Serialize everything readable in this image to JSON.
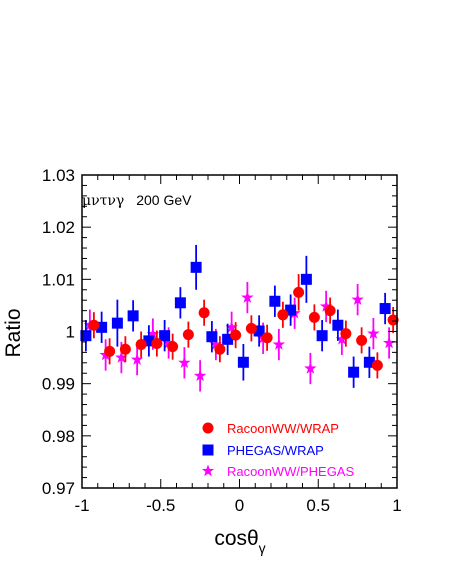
{
  "chart_data": {
    "type": "scatter",
    "title": "",
    "annotation": {
      "channel": "μντνγ",
      "energy": "200 GeV"
    },
    "xlabel": {
      "main": "cosθ",
      "sub": "γ"
    },
    "ylabel": "Ratio",
    "xlim": [
      -1,
      1
    ],
    "ylim": [
      0.97,
      1.03
    ],
    "xticks": [
      "-1",
      "-0.5",
      "0",
      "0.5",
      "1"
    ],
    "yticks": [
      "0.97",
      "0.98",
      "0.99",
      "1",
      "1.01",
      "1.02",
      "1.03"
    ],
    "grid": false,
    "legend_position": "bottom-right",
    "series": [
      {
        "name": "RacoonWW/WRAP",
        "marker": "circle",
        "color": "#ff0000",
        "x": [
          -0.95,
          -0.85,
          -0.75,
          -0.65,
          -0.55,
          -0.45,
          -0.35,
          -0.25,
          -0.15,
          -0.05,
          0.05,
          0.15,
          0.25,
          0.35,
          0.45,
          0.55,
          0.65,
          0.75,
          0.85,
          0.95
        ],
        "y": [
          1.0012,
          0.9962,
          0.9966,
          0.9975,
          0.9977,
          0.9971,
          0.9994,
          1.0036,
          0.9966,
          0.9993,
          1.0006,
          0.9988,
          1.0032,
          1.0075,
          1.0027,
          1.004,
          0.9996,
          0.9983,
          0.9935,
          1.0022
        ],
        "err": [
          0.0025,
          0.0025,
          0.0025,
          0.0025,
          0.0025,
          0.0025,
          0.0025,
          0.0025,
          0.0025,
          0.0025,
          0.0025,
          0.0025,
          0.0025,
          0.0035,
          0.0025,
          0.0025,
          0.0025,
          0.0025,
          0.0025,
          0.0025
        ]
      },
      {
        "name": "PHEGAS/WRAP",
        "marker": "square",
        "color": "#0000ff",
        "x": [
          -0.95,
          -0.85,
          -0.75,
          -0.65,
          -0.55,
          -0.45,
          -0.35,
          -0.25,
          -0.15,
          -0.05,
          0.05,
          0.15,
          0.25,
          0.35,
          0.45,
          0.55,
          0.65,
          0.75,
          0.85,
          0.95
        ],
        "y": [
          0.9992,
          1.0008,
          1.0016,
          1.003,
          0.9982,
          0.9992,
          1.0055,
          1.0123,
          0.999,
          0.9985,
          0.9941,
          1.0001,
          1.0058,
          1.0041,
          1.01,
          0.9992,
          1.0012,
          0.9922,
          0.9941,
          1.0044
        ],
        "err": [
          0.003,
          0.003,
          0.0045,
          0.003,
          0.003,
          0.003,
          0.003,
          0.0043,
          0.003,
          0.003,
          0.0035,
          0.003,
          0.003,
          0.003,
          0.0045,
          0.003,
          0.003,
          0.003,
          0.003,
          0.003
        ]
      },
      {
        "name": "RacoonWW/PHEGAS",
        "marker": "star",
        "color": "#ff00ff",
        "x": [
          -0.95,
          -0.85,
          -0.75,
          -0.65,
          -0.55,
          -0.45,
          -0.35,
          -0.25,
          -0.15,
          -0.05,
          0.05,
          0.15,
          0.25,
          0.35,
          0.45,
          0.55,
          0.65,
          0.75,
          0.85,
          0.95
        ],
        "y": [
          1.0012,
          0.9955,
          0.995,
          0.9946,
          0.9995,
          0.9978,
          0.994,
          0.9915,
          0.9975,
          1.0008,
          1.0065,
          0.9987,
          0.9975,
          1.0035,
          0.9929,
          1.0048,
          0.9985,
          1.0061,
          0.9996,
          0.9978
        ],
        "err": [
          0.003,
          0.003,
          0.003,
          0.003,
          0.003,
          0.003,
          0.003,
          0.003,
          0.003,
          0.003,
          0.003,
          0.003,
          0.003,
          0.003,
          0.003,
          0.003,
          0.003,
          0.003,
          0.003,
          0.003
        ]
      }
    ]
  }
}
